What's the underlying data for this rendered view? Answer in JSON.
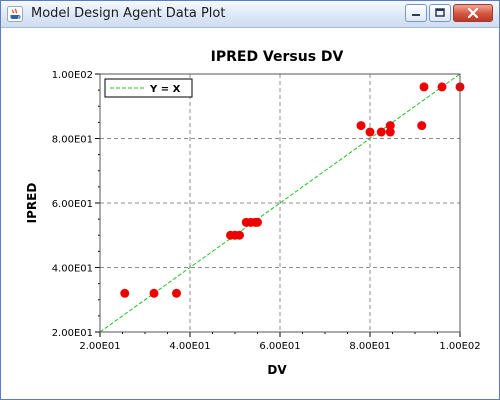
{
  "window": {
    "title": "Model Design Agent Data Plot",
    "controls": {
      "minimize_icon": "minimize-icon",
      "maximize_icon": "maximize-icon",
      "close_icon": "close-icon"
    }
  },
  "chart_data": {
    "type": "scatter",
    "title": "IPRED Versus DV",
    "xlabel": "DV",
    "ylabel": "IPRED",
    "xlim": [
      20,
      100
    ],
    "ylim": [
      20,
      100
    ],
    "xticks": [
      "2.00E01",
      "4.00E01",
      "6.00E01",
      "8.00E01",
      "1.00E02"
    ],
    "yticks": [
      "2.00E01",
      "4.00E01",
      "6.00E01",
      "8.00E01",
      "1.00E02"
    ],
    "grid": true,
    "legend": {
      "position": "top-left",
      "entries": [
        "Y = X"
      ]
    },
    "colors": {
      "points": "#ee0000",
      "reference_line": "#22c022"
    },
    "series": [
      {
        "values": [
          [
            25.5,
            32
          ],
          [
            32,
            32
          ],
          [
            37,
            32
          ],
          [
            49,
            50
          ],
          [
            50,
            50
          ],
          [
            51,
            50
          ],
          [
            52.5,
            54
          ],
          [
            53.5,
            54
          ],
          [
            54.5,
            54
          ],
          [
            55,
            54
          ],
          [
            78,
            84
          ],
          [
            80,
            82
          ],
          [
            82.5,
            82
          ],
          [
            84.5,
            82
          ],
          [
            84.5,
            84
          ],
          [
            91.5,
            84
          ],
          [
            92,
            96
          ],
          [
            96,
            96
          ],
          [
            100,
            96
          ]
        ]
      }
    ],
    "reference_line": {
      "name": "Y = X",
      "points": [
        [
          20,
          20
        ],
        [
          100,
          100
        ]
      ]
    }
  }
}
